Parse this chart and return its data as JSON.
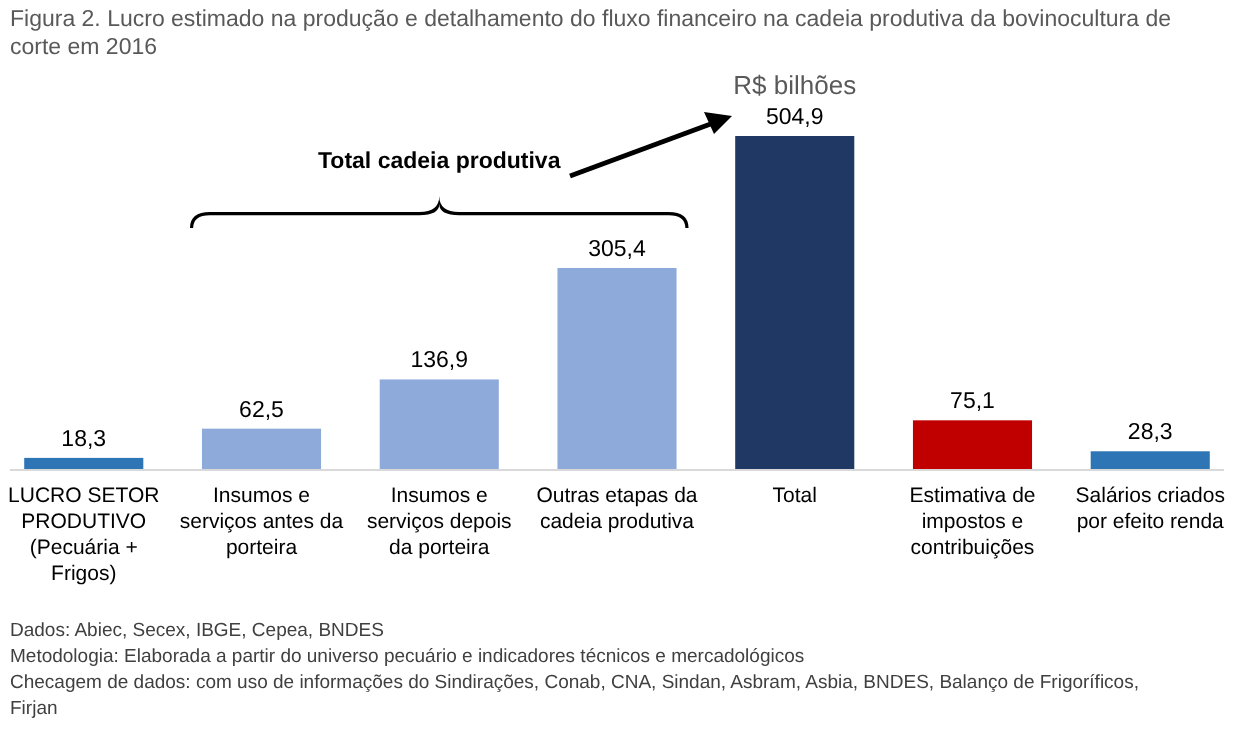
{
  "chart_data": {
    "type": "bar",
    "title": "Figura 2. Lucro estimado na produção e detalhamento do fluxo financeiro na cadeia produtiva da bovinocultura de corte em 2016",
    "subtitle": "R$ bilhões",
    "categories": [
      "LUCRO SETOR PRODUTIVO (Pecuária + Frigos)",
      "Insumos e serviços antes da porteira",
      "Insumos e serviços depois da porteira",
      "Outras etapas da cadeia produtiva",
      "Total",
      "Estimativa de impostos e contribuições",
      "Salários criados por efeito renda"
    ],
    "values": [
      18.3,
      62.5,
      136.9,
      305.4,
      504.9,
      75.1,
      28.3
    ],
    "value_labels": [
      "18,3",
      "62,5",
      "136,9",
      "305,4",
      "504,9",
      "75,1",
      "28,3"
    ],
    "colors": [
      "#2e75b6",
      "#8eaadb",
      "#8eaadb",
      "#8eaadb",
      "#1f3864",
      "#c00000",
      "#2e75b6"
    ],
    "annotations": [
      "Total cadeia produtiva",
      "Dados: Abiec, Secex, IBGE, Cepea, BNDES",
      "Metodologia:  Elaborada a partir do universo pecuário e indicadores técnicos e mercadológicos",
      "Checagem de dados:  com uso de informações do Sindirações, Conab, CNA, Sindan, Asbram, Asbia, BNDES, Balanço de Frigoríficos, Firjan"
    ]
  }
}
